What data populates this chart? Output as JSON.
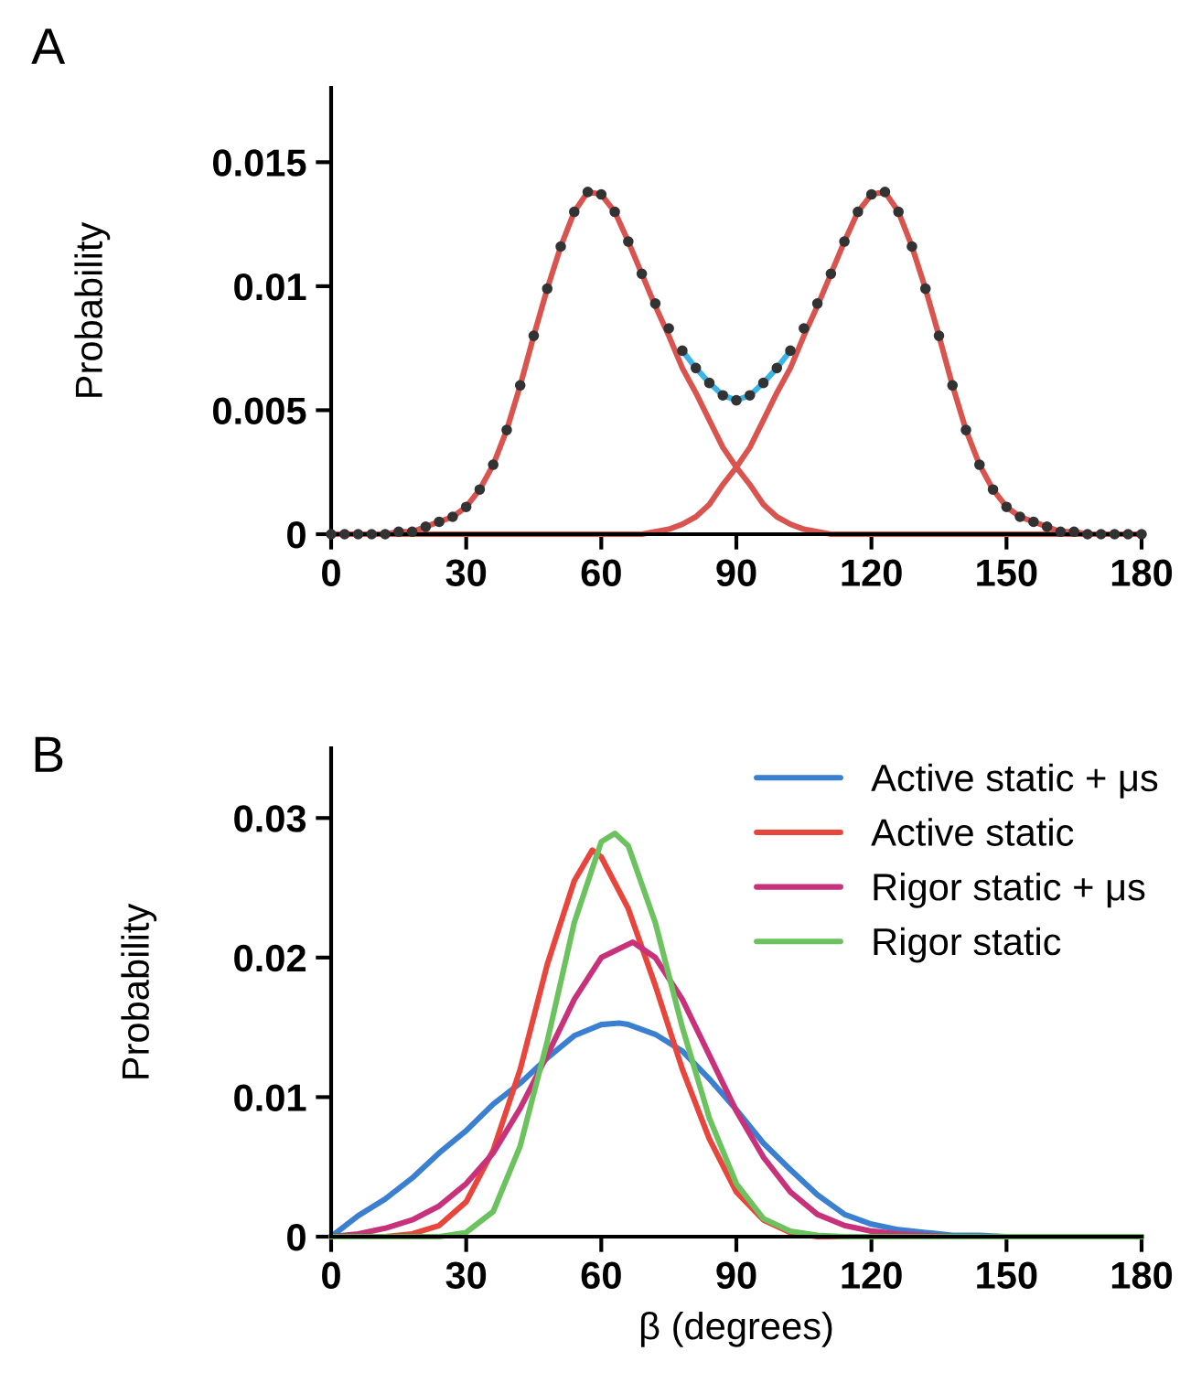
{
  "chart_data": [
    {
      "type": "line",
      "ylabel": "Probability",
      "annotations": [
        "A"
      ],
      "x": [
        0,
        3,
        6,
        9,
        12,
        15,
        18,
        21,
        24,
        27,
        30,
        33,
        36,
        39,
        42,
        45,
        48,
        51,
        54,
        57,
        60,
        63,
        66,
        69,
        72,
        75,
        78,
        81,
        84,
        87,
        90,
        93,
        96,
        99,
        102,
        105,
        108,
        111,
        114,
        117,
        120,
        123,
        126,
        129,
        132,
        135,
        138,
        141,
        144,
        147,
        150,
        153,
        156,
        159,
        162,
        165,
        168,
        171,
        174,
        177,
        180
      ],
      "series": [
        {
          "type": "line",
          "color": "#3cb4e6",
          "values": [
            null,
            null,
            null,
            null,
            null,
            null,
            null,
            null,
            null,
            null,
            null,
            null,
            null,
            null,
            null,
            null,
            null,
            null,
            null,
            null,
            null,
            null,
            null,
            null,
            null,
            null,
            0.0074,
            0.0067,
            0.0061,
            0.0056,
            0.0054,
            0.0056,
            0.0061,
            0.0067,
            0.0074,
            null,
            null,
            null,
            null,
            null,
            null,
            null,
            null,
            null,
            null,
            null,
            null,
            null,
            null,
            null,
            null,
            null,
            null,
            null,
            null,
            null,
            null,
            null,
            null,
            null,
            null
          ]
        },
        {
          "type": "line",
          "color": "#d9534f",
          "values": [
            0,
            0,
            0,
            0,
            0,
            0.0001,
            0.0001,
            0.0003,
            0.0005,
            0.0007,
            0.0011,
            0.0018,
            0.0028,
            0.0042,
            0.006,
            0.008,
            0.0099,
            0.0116,
            0.013,
            0.0138,
            0.0137,
            0.013,
            0.0118,
            0.0105,
            0.0092,
            0.008,
            0.0067,
            0.0057,
            0.0046,
            0.0035,
            0.0027,
            0.002,
            0.0012,
            0.0007,
            0.0004,
            0.0002,
            0.0001,
            0,
            0,
            0,
            0,
            0,
            0,
            0,
            0,
            0,
            0,
            0,
            0,
            0,
            0,
            0,
            0,
            0,
            0,
            0,
            0,
            0,
            0,
            0,
            0
          ]
        },
        {
          "type": "line",
          "color": "#d9534f",
          "values": [
            0,
            0,
            0,
            0,
            0,
            0,
            0,
            0,
            0,
            0,
            0,
            0,
            0,
            0,
            0,
            0,
            0,
            0,
            0,
            0,
            0,
            0,
            0,
            0,
            0.0001,
            0.0002,
            0.0004,
            0.0007,
            0.0012,
            0.002,
            0.0027,
            0.0035,
            0.0046,
            0.0057,
            0.0067,
            0.008,
            0.0092,
            0.0105,
            0.0118,
            0.013,
            0.0137,
            0.0138,
            0.013,
            0.0116,
            0.0099,
            0.008,
            0.006,
            0.0042,
            0.0028,
            0.0018,
            0.0011,
            0.0007,
            0.0005,
            0.0003,
            0.0001,
            0.0001,
            0,
            0,
            0,
            0,
            0
          ]
        },
        {
          "type": "scatter",
          "color": "#333333",
          "marker": "circle",
          "values": [
            0,
            0,
            0,
            0,
            0,
            0.0001,
            0.0001,
            0.0003,
            0.0005,
            0.0007,
            0.0011,
            0.0018,
            0.0028,
            0.0042,
            0.006,
            0.008,
            0.0099,
            0.0116,
            0.013,
            0.0138,
            0.0137,
            0.013,
            0.0118,
            0.0105,
            0.0093,
            0.0083,
            0.0074,
            0.0067,
            0.0061,
            0.0056,
            0.0054,
            0.0056,
            0.0061,
            0.0067,
            0.0074,
            0.0083,
            0.0093,
            0.0105,
            0.0118,
            0.013,
            0.0137,
            0.0138,
            0.013,
            0.0116,
            0.0099,
            0.008,
            0.006,
            0.0042,
            0.0028,
            0.0018,
            0.0011,
            0.0007,
            0.0005,
            0.0003,
            0.0001,
            0.0001,
            0,
            0,
            0,
            0,
            0
          ]
        }
      ],
      "xlim": [
        0,
        180
      ],
      "xticks": [
        0,
        30,
        60,
        90,
        120,
        150,
        180
      ],
      "ylim": [
        0,
        0.018
      ],
      "yticks": [
        0,
        0.005,
        0.01,
        0.015
      ],
      "grid": false,
      "legend": false,
      "line_style": "solid"
    },
    {
      "type": "line",
      "ylabel": "Probability",
      "xlabel": "β (degrees)",
      "annotations": [
        "B"
      ],
      "series": [
        {
          "name": "Active static + μs",
          "color": "#3a7fd0",
          "x": [
            0,
            6,
            12,
            18,
            24,
            30,
            36,
            42,
            48,
            54,
            60,
            64,
            66,
            72,
            78,
            84,
            90,
            96,
            102,
            108,
            114,
            120,
            126,
            132,
            138,
            144,
            150,
            180
          ],
          "values": [
            0,
            0.0015,
            0.0027,
            0.0042,
            0.006,
            0.0076,
            0.0095,
            0.011,
            0.0128,
            0.0144,
            0.0152,
            0.0153,
            0.0152,
            0.0145,
            0.0133,
            0.0113,
            0.0091,
            0.0067,
            0.0048,
            0.003,
            0.0016,
            0.0009,
            0.0005,
            0.0003,
            0.0001,
            0.0001,
            0,
            0
          ]
        },
        {
          "name": "Active static",
          "color": "#e8453c",
          "x": [
            0,
            12,
            18,
            24,
            30,
            36,
            42,
            48,
            54,
            58,
            60,
            66,
            72,
            78,
            84,
            90,
            96,
            102,
            108,
            180
          ],
          "values": [
            0,
            0,
            0.0002,
            0.0008,
            0.0025,
            0.0062,
            0.012,
            0.0195,
            0.0255,
            0.0277,
            0.0272,
            0.0235,
            0.018,
            0.012,
            0.007,
            0.0032,
            0.0012,
            0.0003,
            0,
            0
          ]
        },
        {
          "name": "Rigor static + μs",
          "color": "#c8327a",
          "x": [
            0,
            6,
            12,
            18,
            24,
            30,
            36,
            42,
            48,
            54,
            60,
            67,
            72,
            78,
            84,
            90,
            96,
            102,
            108,
            114,
            120,
            126,
            132,
            138,
            180
          ],
          "values": [
            0,
            0.0002,
            0.0006,
            0.0012,
            0.0022,
            0.0038,
            0.006,
            0.0092,
            0.013,
            0.017,
            0.02,
            0.0211,
            0.02,
            0.017,
            0.013,
            0.009,
            0.0057,
            0.0032,
            0.0016,
            0.0008,
            0.0004,
            0.0002,
            0.0001,
            0,
            0
          ]
        },
        {
          "name": "Rigor static",
          "color": "#6cc25e",
          "x": [
            0,
            24,
            30,
            36,
            42,
            48,
            54,
            60,
            63,
            66,
            72,
            78,
            84,
            90,
            96,
            102,
            108,
            114,
            180
          ],
          "values": [
            0,
            0,
            0.0003,
            0.0018,
            0.0065,
            0.014,
            0.0225,
            0.0283,
            0.0289,
            0.028,
            0.0225,
            0.015,
            0.0085,
            0.0038,
            0.0013,
            0.0004,
            0.0001,
            0,
            0
          ]
        }
      ],
      "xlim": [
        0,
        180
      ],
      "xticks": [
        0,
        30,
        60,
        90,
        120,
        150,
        180
      ],
      "ylim": [
        0,
        0.035
      ],
      "yticks": [
        0,
        0.01,
        0.02,
        0.03
      ],
      "grid": false,
      "legend": "top right",
      "line_style": "solid"
    }
  ]
}
